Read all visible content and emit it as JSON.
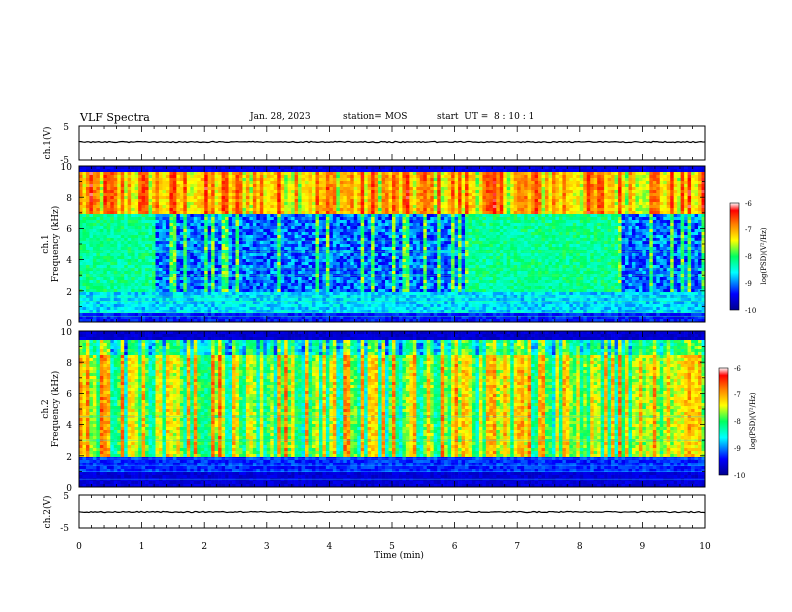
{
  "header": {
    "title": "VLF Spectra",
    "date": "Jan. 28, 2023",
    "station": "station= MOS",
    "start": "start  UT =  8 : 10 : 1"
  },
  "chart_data": [
    {
      "type": "line",
      "panel": "ch1-waveform",
      "ylabel": "ch.1(V)",
      "ylim": [
        -5,
        5
      ],
      "yticks": [
        "5",
        "-5"
      ],
      "xlim": [
        0,
        10
      ],
      "series": [
        {
          "values": [
            0,
            0
          ]
        }
      ]
    },
    {
      "type": "heatmap",
      "panel": "ch1-spectrogram",
      "ylabel": [
        "ch.1",
        "Frequency (kHz)"
      ],
      "ylim": [
        0,
        10
      ],
      "yticks": [
        "0",
        "2",
        "4",
        "6",
        "8",
        "10"
      ],
      "xlim": [
        0,
        10
      ],
      "colorbar": {
        "label": "log(PSD)(V²/Hz)",
        "range": [
          -10,
          -6
        ],
        "ticks": [
          "-6",
          "-7",
          "-8",
          "-9",
          "-10"
        ]
      }
    },
    {
      "type": "heatmap",
      "panel": "ch2-spectrogram",
      "ylabel": [
        "ch.2",
        "Frequency (kHz)"
      ],
      "ylim": [
        0,
        10
      ],
      "yticks": [
        "0",
        "2",
        "4",
        "6",
        "8",
        "10"
      ],
      "xlim": [
        0,
        10
      ],
      "colorbar": {
        "label": "log(PSD)(V²/Hz)",
        "range": [
          -10,
          -6
        ],
        "ticks": [
          "-6",
          "-7",
          "-8",
          "-9",
          "-10"
        ]
      }
    },
    {
      "type": "line",
      "panel": "ch2-waveform",
      "ylabel": "ch.2(V)",
      "ylim": [
        -5,
        5
      ],
      "yticks": [
        "5",
        "-5"
      ],
      "xlim": [
        0,
        10
      ],
      "xlabel": "Time (min)",
      "xticks": [
        "0",
        "1",
        "2",
        "3",
        "4",
        "5",
        "6",
        "7",
        "8",
        "9",
        "10"
      ],
      "series": [
        {
          "values": [
            0,
            0
          ]
        }
      ]
    }
  ],
  "colors": {
    "jet": [
      "#00008f",
      "#0000ff",
      "#00ffff",
      "#00ff60",
      "#ffff00",
      "#ff8000",
      "#ff0000",
      "#ffffff"
    ]
  }
}
